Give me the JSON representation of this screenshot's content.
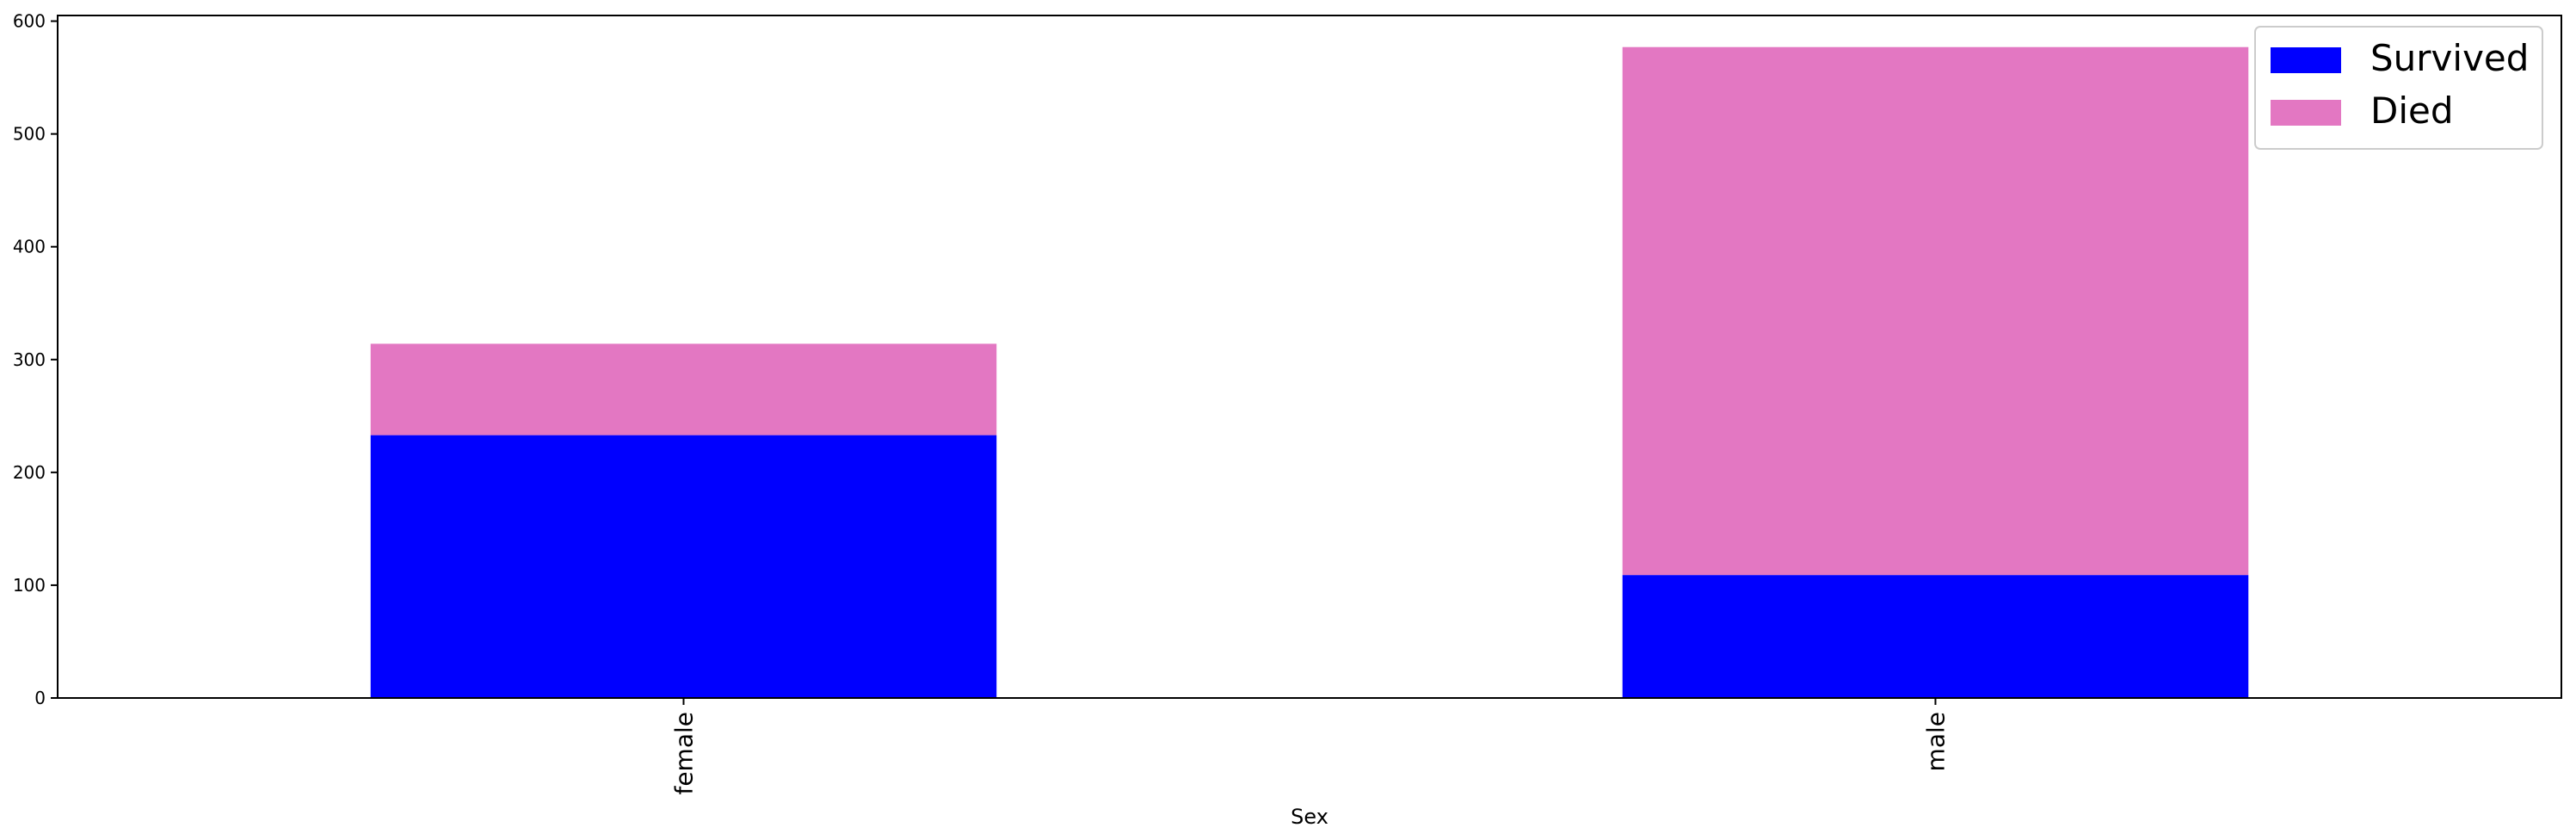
{
  "chart_data": {
    "type": "bar",
    "stacked": true,
    "categories": [
      "female",
      "male"
    ],
    "series": [
      {
        "name": "Survived",
        "values": [
          233,
          109
        ],
        "color": "#0000ff"
      },
      {
        "name": "Died",
        "values": [
          81,
          468
        ],
        "color": "#e377c2"
      }
    ],
    "title": "",
    "xlabel": "Sex",
    "ylabel": "",
    "ylim": [
      0,
      605
    ],
    "yticks": [
      0,
      100,
      200,
      300,
      400,
      500,
      600
    ],
    "grid": false,
    "legend_position": "top-right"
  }
}
